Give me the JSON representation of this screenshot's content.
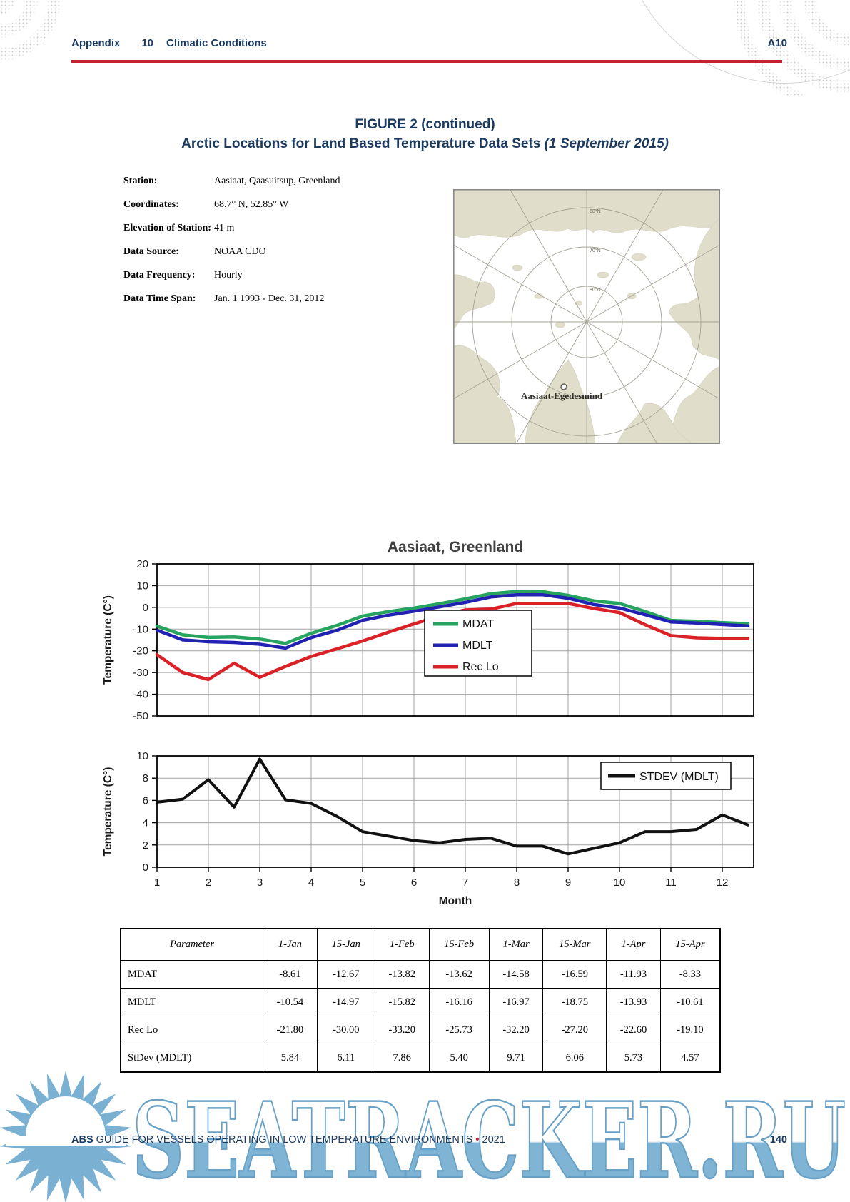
{
  "header": {
    "section": "Appendix",
    "number": "10",
    "title": "Climatic Conditions",
    "page_ref": "A10"
  },
  "figure": {
    "line1": "FIGURE 2 (continued)",
    "line2": "Arctic Locations for Land Based Temperature Data Sets",
    "line2_date": " (1 September 2015)"
  },
  "station_info": {
    "rows": [
      {
        "label": "Station:",
        "value": "Aasiaat, Qaasuitsup, Greenland"
      },
      {
        "label": "Coordinates:",
        "value": "68.7° N, 52.85° W"
      },
      {
        "label": "Elevation of Station:",
        "value": "41 m"
      },
      {
        "label": "Data Source:",
        "value": "NOAA CDO"
      },
      {
        "label": "Data Frequency:",
        "value": "Hourly"
      },
      {
        "label": "Data Time Span:",
        "value": "Jan. 1 1993 - Dec. 31, 2012"
      }
    ]
  },
  "map": {
    "station_label": "Aasiaat-Egedesmind",
    "graticule_labels": [
      "60°N",
      "70°N",
      "80°N"
    ]
  },
  "chart_data": [
    {
      "type": "line",
      "title": "Aasiaat, Greenland",
      "ylabel": "Temperature (C°)",
      "ylim": [
        -50,
        20
      ],
      "yticks": [
        20,
        10,
        0,
        -10,
        -20,
        -30,
        -40,
        -50
      ],
      "grid": true,
      "legend_position": "inside-center-bottom",
      "x": [
        1,
        1.5,
        2,
        2.5,
        3,
        3.5,
        4,
        4.5,
        5,
        5.5,
        6,
        6.5,
        7,
        7.5,
        8,
        8.5,
        9,
        9.5,
        10,
        10.5,
        11,
        11.5,
        12,
        12.5
      ],
      "series": [
        {
          "name": "MDAT",
          "color": "#26a45f",
          "values": [
            -8.61,
            -12.67,
            -13.82,
            -13.62,
            -14.58,
            -16.59,
            -11.93,
            -8.33,
            -4.0,
            -2.0,
            -0.3,
            1.7,
            3.9,
            6.3,
            7.3,
            7.2,
            5.5,
            3.0,
            1.8,
            -1.9,
            -6.0,
            -6.4,
            -7.0,
            -7.5
          ]
        },
        {
          "name": "MDLT",
          "color": "#2121b2",
          "values": [
            -10.54,
            -14.97,
            -15.82,
            -16.16,
            -16.97,
            -18.75,
            -13.93,
            -10.61,
            -6.0,
            -3.6,
            -1.8,
            0.2,
            2.3,
            4.8,
            5.8,
            5.8,
            4.2,
            1.3,
            -0.3,
            -3.4,
            -6.7,
            -7.2,
            -7.9,
            -8.5
          ]
        },
        {
          "name": "Rec Lo",
          "color": "#da2128",
          "values": [
            -21.8,
            -30.0,
            -33.2,
            -25.73,
            -32.2,
            -27.2,
            -22.6,
            -19.1,
            -15.5,
            -11.5,
            -7.6,
            -4.0,
            -1.2,
            -0.8,
            1.8,
            1.8,
            1.8,
            -0.5,
            -2.4,
            -8.0,
            -13.0,
            -14.0,
            -14.3,
            -14.3
          ]
        }
      ]
    },
    {
      "type": "line",
      "title": "",
      "ylabel": "Temperature (C°)",
      "xlabel": "Month",
      "ylim": [
        0,
        10
      ],
      "yticks": [
        10,
        8,
        6,
        4,
        2,
        0
      ],
      "xticks": [
        1,
        2,
        3,
        4,
        5,
        6,
        7,
        8,
        9,
        10,
        11,
        12
      ],
      "grid": true,
      "legend_position": "inside-top-right",
      "x": [
        1,
        1.5,
        2,
        2.5,
        3,
        3.5,
        4,
        4.5,
        5,
        5.5,
        6,
        6.5,
        7,
        7.5,
        8,
        8.5,
        9,
        9.5,
        10,
        10.5,
        11,
        11.5,
        12,
        12.5
      ],
      "series": [
        {
          "name": "STDEV (MDLT)",
          "color": "#111111",
          "values": [
            5.84,
            6.11,
            7.86,
            5.4,
            9.71,
            6.06,
            5.73,
            4.57,
            3.2,
            2.8,
            2.4,
            2.2,
            2.5,
            2.6,
            1.9,
            1.9,
            1.2,
            1.7,
            2.2,
            3.2,
            3.2,
            3.4,
            4.7,
            3.8
          ]
        }
      ]
    }
  ],
  "table": {
    "columns": [
      "Parameter",
      "1-Jan",
      "15-Jan",
      "1-Feb",
      "15-Feb",
      "1-Mar",
      "15-Mar",
      "1-Apr",
      "15-Apr"
    ],
    "rows": [
      {
        "parameter": "MDAT",
        "values": [
          "-8.61",
          "-12.67",
          "-13.82",
          "-13.62",
          "-14.58",
          "-16.59",
          "-11.93",
          "-8.33"
        ]
      },
      {
        "parameter": "MDLT",
        "values": [
          "-10.54",
          "-14.97",
          "-15.82",
          "-16.16",
          "-16.97",
          "-18.75",
          "-13.93",
          "-10.61"
        ]
      },
      {
        "parameter": "Rec Lo",
        "values": [
          "-21.80",
          "-30.00",
          "-33.20",
          "-25.73",
          "-32.20",
          "-27.20",
          "-22.60",
          "-19.10"
        ]
      },
      {
        "parameter": "StDev (MDLT)",
        "values": [
          "5.84",
          "6.11",
          "7.86",
          "5.40",
          "9.71",
          "6.06",
          "5.73",
          "4.57"
        ]
      }
    ]
  },
  "footer": {
    "abs": "ABS",
    "guide": "GUIDE FOR VESSELS OPERATING IN LOW TEMPERATURE ENVIRONMENTS",
    "bullet": "•",
    "year": "2021",
    "page_number": "140"
  },
  "watermark": {
    "text": "SEATRACKER.RU"
  },
  "colors": {
    "navy": "#1b3a60",
    "rule_red": "#c4202e",
    "mdat_green": "#26a45f",
    "mdlt_blue": "#2121b2",
    "reclo_red": "#da2128",
    "grid_gray": "#a3a3a3",
    "chart_title_gray": "#404040",
    "map_land": "#e0decb",
    "watermark_blue": "#7ab0d2"
  }
}
